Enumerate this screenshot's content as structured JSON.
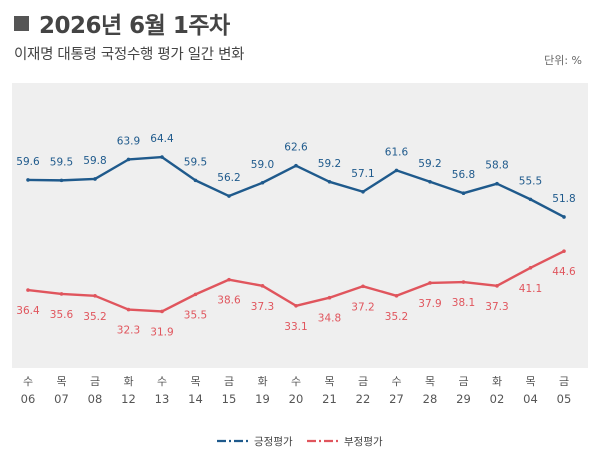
{
  "header": {
    "title": "2026년 6월 1주차",
    "subtitle": "이재명 대통령 국정수행 평가 일간 변화",
    "unit": "단위: %"
  },
  "colors": {
    "positive": "#1f5a8c",
    "negative": "#e0555d",
    "plot_bg": "#efefef"
  },
  "chart_data": {
    "type": "line",
    "title": "",
    "ylabel": "",
    "ylim": [
      20,
      80
    ],
    "grid": false,
    "legend_position": "bottom",
    "categories": [
      {
        "weekday": "수",
        "day": "06"
      },
      {
        "weekday": "목",
        "day": "07"
      },
      {
        "weekday": "금",
        "day": "08"
      },
      {
        "weekday": "화",
        "day": "12"
      },
      {
        "weekday": "수",
        "day": "13"
      },
      {
        "weekday": "목",
        "day": "14"
      },
      {
        "weekday": "금",
        "day": "15"
      },
      {
        "weekday": "화",
        "day": "19"
      },
      {
        "weekday": "수",
        "day": "20"
      },
      {
        "weekday": "목",
        "day": "21"
      },
      {
        "weekday": "금",
        "day": "22"
      },
      {
        "weekday": "수",
        "day": "27"
      },
      {
        "weekday": "목",
        "day": "28"
      },
      {
        "weekday": "금",
        "day": "29"
      },
      {
        "weekday": "화",
        "day": "02"
      },
      {
        "weekday": "목",
        "day": "04"
      },
      {
        "weekday": "금",
        "day": "05"
      }
    ],
    "series": [
      {
        "name": "긍정평가",
        "color": "#1f5a8c",
        "values": [
          59.6,
          59.5,
          59.8,
          63.9,
          64.4,
          59.5,
          56.2,
          59.0,
          62.6,
          59.2,
          57.1,
          61.6,
          59.2,
          56.8,
          58.8,
          55.5,
          51.8
        ],
        "labels": [
          "59.6",
          "59.5",
          "59.8",
          "63.9",
          "64.4",
          "59.5",
          "56.2",
          "59.0",
          "62.6",
          "59.2",
          "57.1",
          "61.6",
          "59.2",
          "56.8",
          "58.8",
          "55.5",
          "51.8"
        ]
      },
      {
        "name": "부정평가",
        "color": "#e0555d",
        "values": [
          36.4,
          35.6,
          35.2,
          32.3,
          31.9,
          35.5,
          38.6,
          37.3,
          33.1,
          34.8,
          37.2,
          35.2,
          37.9,
          38.1,
          37.3,
          41.1,
          44.6
        ],
        "labels": [
          "36.4",
          "35.6",
          "35.2",
          "32.3",
          "31.9",
          "35.5",
          "38.6",
          "37.3",
          "33.1",
          "34.8",
          "37.2",
          "35.2",
          "37.9",
          "38.1",
          "37.3",
          "41.1",
          "44.6"
        ]
      }
    ]
  }
}
